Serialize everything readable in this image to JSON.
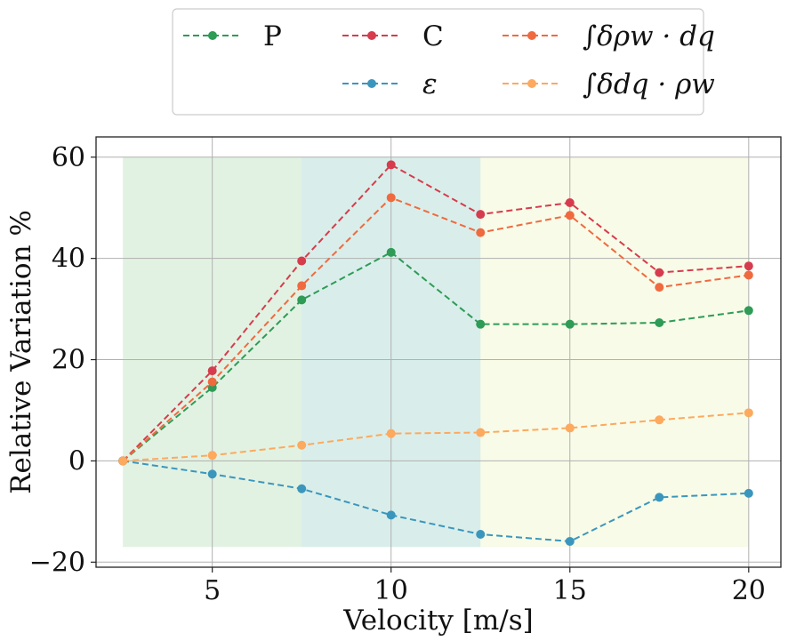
{
  "chart_data": {
    "type": "line",
    "xlabel": "Velocity [m/s]",
    "ylabel": "Relative Variation %",
    "xlim": [
      1.75,
      20.9
    ],
    "ylim": [
      -21,
      64
    ],
    "xticks": [
      5,
      10,
      15,
      20
    ],
    "yticks": [
      -20,
      0,
      20,
      40,
      60
    ],
    "ytick_labels": [
      "−20",
      "0",
      "20",
      "40",
      "60"
    ],
    "grid": true,
    "legend_placement": "above plot, 3 columns",
    "shaded_regions": [
      {
        "x": [
          2.5,
          12.5
        ],
        "y": [
          -17,
          60
        ],
        "color": "#c6e5c6"
      },
      {
        "x": [
          7.5,
          12.5
        ],
        "y": [
          -17,
          60
        ],
        "color": "#cfeaf2"
      },
      {
        "x": [
          12.5,
          20
        ],
        "y": [
          -17,
          60
        ],
        "color": "#f2f7cf"
      }
    ],
    "x": [
      2.5,
      5,
      7.5,
      10,
      12.5,
      15,
      17.5,
      20
    ],
    "series": [
      {
        "name": "P",
        "color": "#2e9b57",
        "values": [
          0,
          14.5,
          31.8,
          41.2,
          27.0,
          27.0,
          27.3,
          29.7
        ]
      },
      {
        "name": "C",
        "color": "#d63c4d",
        "values": [
          0,
          17.8,
          39.5,
          58.5,
          48.7,
          51.0,
          37.2,
          38.5
        ]
      },
      {
        "name": "∫δρw · dq",
        "color": "#f06a3f",
        "values": [
          0,
          15.6,
          34.6,
          52.0,
          45.1,
          48.5,
          34.3,
          36.7
        ]
      },
      {
        "name": "ε",
        "color": "#3b96bd",
        "values": [
          0,
          -2.6,
          -5.5,
          -10.7,
          -14.5,
          -15.9,
          -7.2,
          -6.4
        ]
      },
      {
        "name": "∫δdq · ρw",
        "color": "#fda95e",
        "values": [
          0,
          1.1,
          3.1,
          5.4,
          5.6,
          6.5,
          8.1,
          9.5
        ]
      }
    ],
    "legend_order": [
      0,
      1,
      2,
      3,
      4
    ]
  }
}
